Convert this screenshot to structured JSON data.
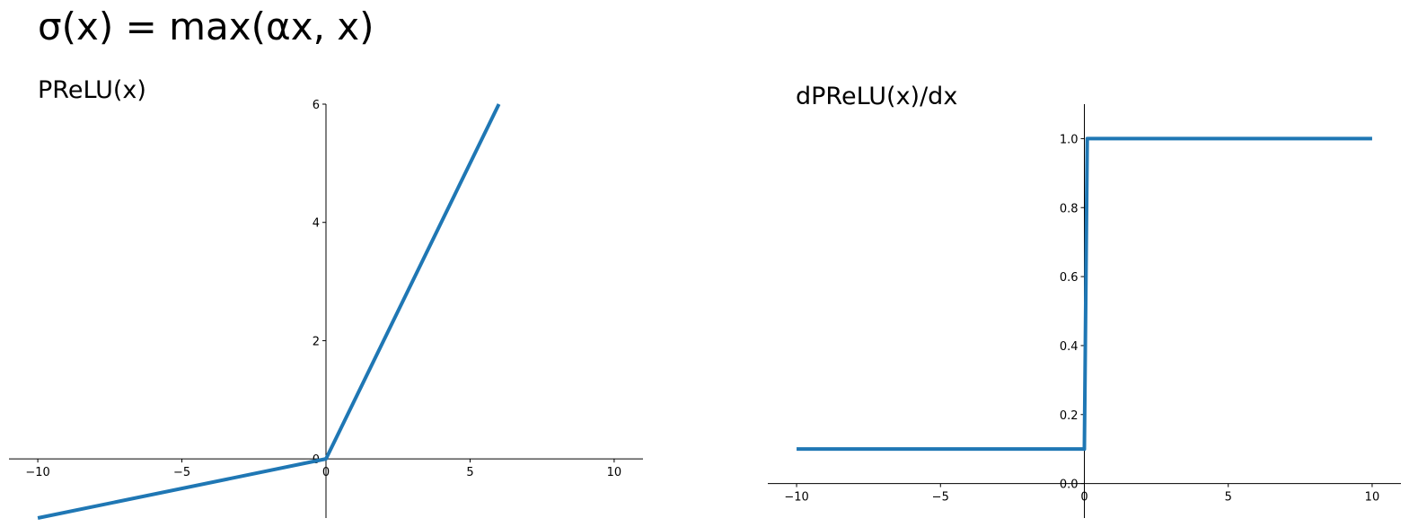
{
  "suptitle": "σ(x) = max(αx, x)",
  "colors": {
    "series": "#1f77b4",
    "axis": "#000000"
  },
  "chart_data": [
    {
      "type": "line",
      "title": "PReLU(x)",
      "xlabel": "",
      "ylabel": "",
      "xlim": [
        -11,
        11
      ],
      "ylim": [
        -1,
        6
      ],
      "xticks": [
        -10,
        -5,
        0,
        5,
        10
      ],
      "xtick_labels": [
        "−10",
        "−5",
        "0",
        "5",
        "10"
      ],
      "yticks": [
        0,
        2,
        4,
        6
      ],
      "ytick_labels": [
        "0",
        "2",
        "4",
        "6"
      ],
      "grid": false,
      "spines": "centered at origin",
      "series": [
        {
          "x": [
            -10,
            0,
            6
          ],
          "y": [
            -1,
            0,
            6
          ]
        }
      ]
    },
    {
      "type": "line",
      "title": "dPReLU(x)/dx",
      "xlabel": "",
      "ylabel": "",
      "xlim": [
        -11,
        11
      ],
      "ylim": [
        -0.1,
        1.1
      ],
      "xticks": [
        -10,
        -5,
        0,
        5,
        10
      ],
      "xtick_labels": [
        "−10",
        "−5",
        "0",
        "5",
        "10"
      ],
      "yticks": [
        0,
        0.2,
        0.4,
        0.6,
        0.8,
        1.0
      ],
      "ytick_labels": [
        "0.0",
        "0.2",
        "0.4",
        "0.6",
        "0.8",
        "1.0"
      ],
      "grid": false,
      "spines": "centered at origin",
      "series": [
        {
          "x": [
            -10,
            0,
            0.1,
            10
          ],
          "y": [
            0.1,
            0.1,
            1.0,
            1.0
          ]
        }
      ]
    }
  ]
}
